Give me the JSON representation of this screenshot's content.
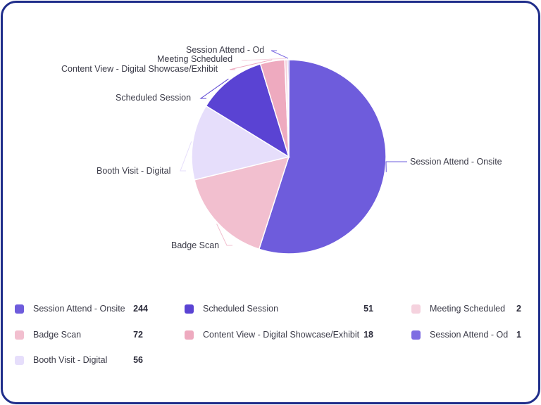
{
  "chart_data": {
    "type": "pie",
    "categories": [
      "Session Attend - Onsite",
      "Badge Scan",
      "Booth Visit - Digital",
      "Scheduled Session",
      "Content View - Digital Showcase/Exhibit",
      "Meeting Scheduled",
      "Session Attend - Od"
    ],
    "values": [
      244,
      72,
      56,
      51,
      18,
      2,
      1
    ],
    "colors": [
      "#6e5cdc",
      "#f2bfcf",
      "#e6defb",
      "#5a43d3",
      "#eeaabf",
      "#f5d2de",
      "#7e6de2"
    ],
    "legend_position": "bottom",
    "labels_outside": true
  },
  "legend": {
    "items": [
      {
        "label": "Session Attend - Onsite",
        "value": "244",
        "color": "#6e5cdc"
      },
      {
        "label": "Badge Scan",
        "value": "72",
        "color": "#f2bfcf"
      },
      {
        "label": "Booth Visit - Digital",
        "value": "56",
        "color": "#e6defb"
      },
      {
        "label": "Scheduled Session",
        "value": "51",
        "color": "#5a43d3"
      },
      {
        "label": "Content View - Digital Showcase/Exhibit",
        "value": "18",
        "color": "#eeaabf"
      },
      {
        "label": "Meeting Scheduled",
        "value": "2",
        "color": "#f5d2de"
      },
      {
        "label": "Session Attend - Od",
        "value": "1",
        "color": "#7e6de2"
      }
    ]
  }
}
